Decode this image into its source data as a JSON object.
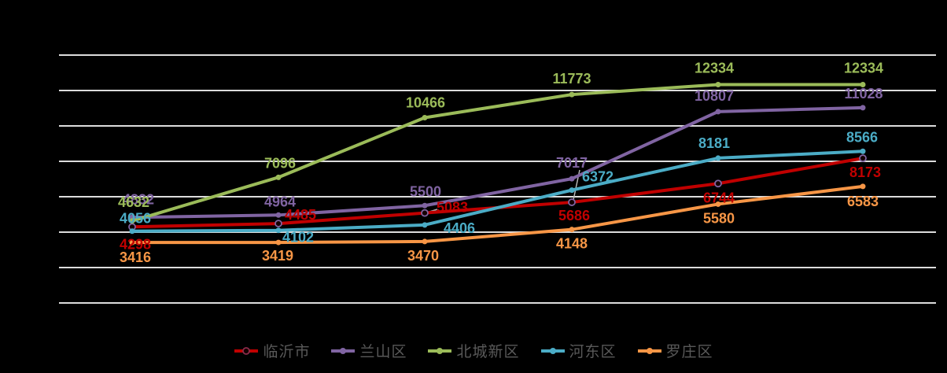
{
  "chart_data": {
    "type": "line",
    "title": "",
    "x_count": 6,
    "categories": [
      "",
      "",
      "",
      "",
      "",
      ""
    ],
    "ylim": [
      0,
      14000
    ],
    "grid_step": 2000,
    "grid": true,
    "legend_position": "bottom",
    "background_color": "#000000",
    "gridline_color": "#dcdcdc",
    "legend_text_color": "#595959",
    "series": [
      {
        "name": "临沂市",
        "color": "#C00000",
        "marker": "open-circle",
        "values": [
          4298,
          4485,
          5083,
          5686,
          6744,
          8173
        ]
      },
      {
        "name": "兰山区",
        "color": "#8064A2",
        "marker": "circle",
        "values": [
          4832,
          4964,
          5500,
          7017,
          10807,
          11028
        ]
      },
      {
        "name": "北城新区",
        "color": "#9BBB59",
        "marker": "circle",
        "values": [
          4632,
          7096,
          10466,
          11773,
          12334,
          12334
        ]
      },
      {
        "name": "河东区",
        "color": "#4BACC6",
        "marker": "circle",
        "values": [
          4056,
          4102,
          4406,
          6372,
          8181,
          8566
        ]
      },
      {
        "name": "罗庄区",
        "color": "#F79646",
        "marker": "circle",
        "values": [
          3416,
          3419,
          3470,
          4148,
          5580,
          6583
        ]
      }
    ]
  }
}
